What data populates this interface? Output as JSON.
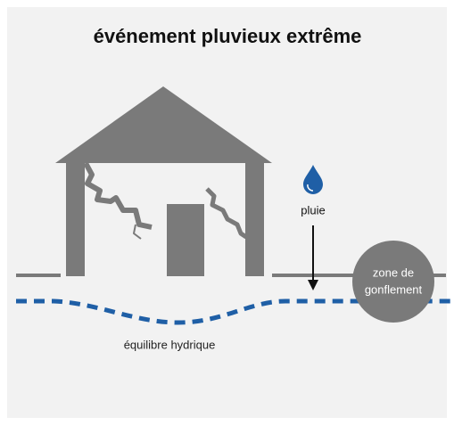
{
  "header": {
    "title": "événement pluvieux extrême"
  },
  "labels": {
    "rain": "pluie",
    "swelling_zone": [
      "zone de",
      "gonflement"
    ],
    "water_balance": "équilibre hydrique"
  }
}
